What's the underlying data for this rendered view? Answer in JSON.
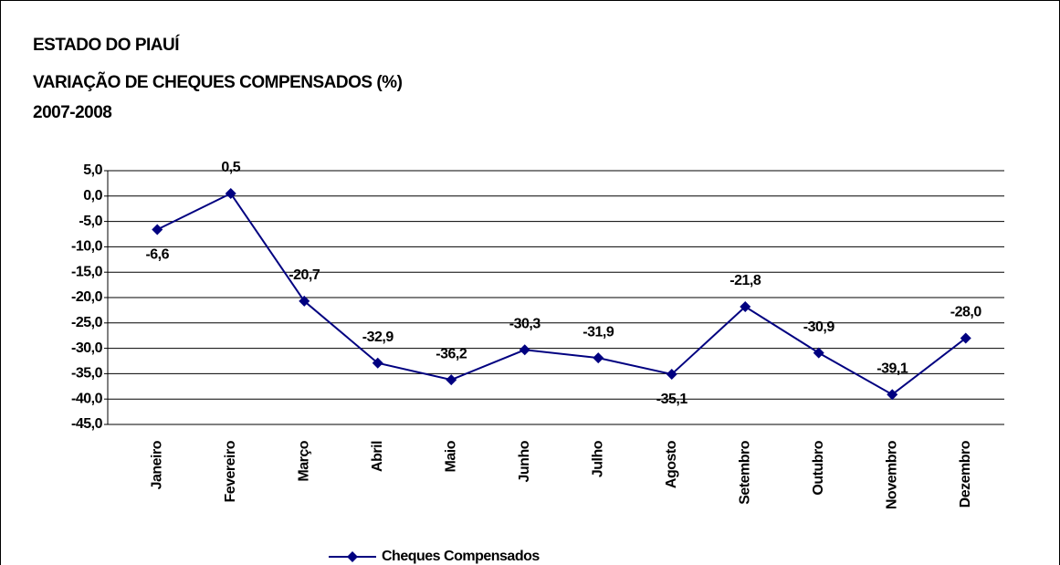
{
  "chart_data": {
    "type": "line",
    "title": [
      "ESTADO DO PIAUÍ",
      "VARIAÇÃO DE CHEQUES COMPENSADOS (%)",
      "2007-2008"
    ],
    "categories": [
      "Janeiro",
      "Fevereiro",
      "Março",
      "Abril",
      "Maio",
      "Junho",
      "Julho",
      "Agosto",
      "Setembro",
      "Outubro",
      "Novembro",
      "Dezembro"
    ],
    "series": [
      {
        "name": "Cheques Compensados",
        "color": "#000080",
        "values": [
          -6.6,
          0.5,
          -20.7,
          -32.9,
          -36.2,
          -30.3,
          -31.9,
          -35.1,
          -21.8,
          -30.9,
          -39.1,
          -28.0
        ],
        "value_labels": [
          "-6,6",
          "0,5",
          "-20,7",
          "-32,9",
          "-36,2",
          "-30,3",
          "-31,9",
          "-35,1",
          "-21,8",
          "-30,9",
          "-39,1",
          "-28,0"
        ]
      }
    ],
    "ylim": [
      -45,
      5
    ],
    "yticks": [
      {
        "value": 5,
        "label": "5,0"
      },
      {
        "value": 0,
        "label": "0,0"
      },
      {
        "value": -5,
        "label": "-5,0"
      },
      {
        "value": -10,
        "label": "-10,0"
      },
      {
        "value": -15,
        "label": "-15,0"
      },
      {
        "value": -20,
        "label": "-20,0"
      },
      {
        "value": -25,
        "label": "-25,0"
      },
      {
        "value": -30,
        "label": "-30,0"
      },
      {
        "value": -35,
        "label": "-35,0"
      },
      {
        "value": -40,
        "label": "-40,0"
      },
      {
        "value": -45,
        "label": "-45,0"
      }
    ],
    "grid": true,
    "legend": "bottom"
  }
}
